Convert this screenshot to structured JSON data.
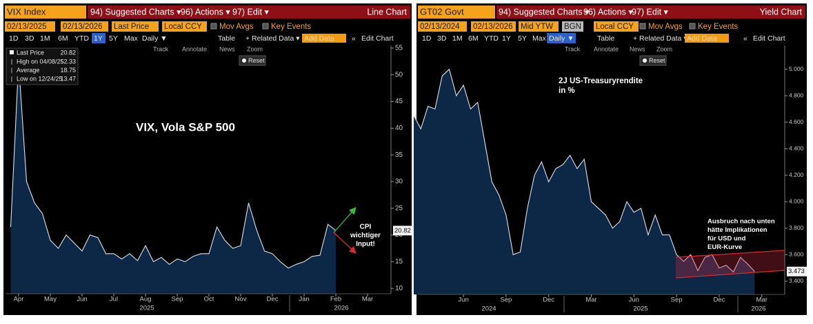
{
  "panels": [
    {
      "security": "VIX Index",
      "menus": [
        "94) Suggested Charts ▾",
        "96) Actions ▾",
        "97) Edit ▾"
      ],
      "view": "Line Chart",
      "fields": [
        "02/13/2025",
        "02/13/2026",
        "Last Price",
        "Local CCY"
      ],
      "toggles": [
        "Mov Avgs",
        "Key Events"
      ],
      "periods": [
        "1D",
        "3D",
        "1M",
        "6M",
        "YTD",
        "1Y",
        "5Y",
        "Max"
      ],
      "tools": [
        "Daily ▼",
        "Table",
        "+ Related Data ▾",
        "Add Data",
        "«",
        "Edit Chart"
      ],
      "chart_tools": [
        "Track",
        "Annotate",
        "News",
        "Zoom"
      ],
      "reset": "Reset"
    },
    {
      "security": "GT02 Govt",
      "menus": [
        "94) Suggested Charts ▾",
        "96) Actions ▾",
        "97) Edit ▾"
      ],
      "view": "Yield Chart",
      "fields": [
        "02/13/2024",
        "02/13/2026",
        "Mid YTW",
        "BGN",
        "Local CCY"
      ],
      "toggles": [
        "Mov Avgs",
        "Key Events"
      ],
      "periods": [
        "1D",
        "3D",
        "1M",
        "6M",
        "YTD",
        "1Y",
        "5Y",
        "Max"
      ],
      "tools": [
        "Daily ▼",
        "Table",
        "+ Related Data ▾",
        "Add Data",
        "«",
        "Edit Chart"
      ],
      "chart_tools": [
        "Track",
        "Annotate",
        "News",
        "Zoom"
      ],
      "reset": "Reset"
    }
  ],
  "chart_data": [
    {
      "type": "line",
      "title": "VIX, Vola S&P 500",
      "annotation_lines": [
        "CPI",
        "wichtiger",
        "Input!"
      ],
      "categories": [
        null,
        "Apr",
        null,
        null,
        null,
        "May",
        null,
        null,
        null,
        "Jun",
        null,
        null,
        null,
        "Jul",
        null,
        null,
        null,
        "Aug",
        null,
        null,
        null,
        "Sep",
        null,
        null,
        null,
        "Oct",
        null,
        null,
        null,
        "Nov",
        null,
        null,
        null,
        "Dec",
        null,
        null,
        null,
        "Jan",
        null,
        null,
        null,
        "Feb",
        null,
        null,
        null,
        "Mar",
        null,
        null,
        null
      ],
      "year_labels": [
        "2025",
        "2026"
      ],
      "series": [
        {
          "name": "Last Price",
          "color": "#dfe3ea",
          "values": [
            21.5,
            52.3,
            30,
            26,
            24,
            19,
            17.5,
            20,
            18.5,
            17,
            20,
            19.5,
            16.5,
            16.5,
            15.5,
            16.5,
            15.2,
            18,
            15,
            15.8,
            14.5,
            15.5,
            15,
            16,
            16.5,
            16.5,
            21.5,
            19,
            17.5,
            18,
            26,
            21,
            17,
            16.5,
            15,
            13.8,
            14.5,
            15,
            16,
            16.2,
            22,
            20.82,
            null,
            null,
            null,
            null,
            null,
            null,
            null
          ]
        }
      ],
      "stats": [
        {
          "label": "High on 04/08/25",
          "value": 52.33
        },
        {
          "label": "Average",
          "value": 18.75
        },
        {
          "label": "Low on 12/24/25",
          "value": 13.47
        }
      ],
      "fill": "#0d2747",
      "ylim": [
        9,
        55.5
      ],
      "yticks": [
        10,
        15,
        20,
        25,
        30,
        35,
        40,
        45,
        50,
        55
      ],
      "grid": false
    },
    {
      "type": "line",
      "title_lines": [
        "2J US-Treasuryrendite",
        "in %"
      ],
      "annotation_lines": [
        "Ausbruch nach unten",
        "hätte Implikationen",
        "für USD und",
        "EUR-Kurve"
      ],
      "categories": [
        null,
        null,
        null,
        null,
        null,
        null,
        null,
        "Jun",
        null,
        null,
        null,
        null,
        null,
        "Sep",
        null,
        null,
        null,
        null,
        null,
        "Dec",
        null,
        null,
        null,
        null,
        null,
        "Mar",
        null,
        null,
        null,
        null,
        null,
        "Jun",
        null,
        null,
        null,
        null,
        null,
        "Sep",
        null,
        null,
        null,
        null,
        null,
        "Dec",
        null,
        null,
        null,
        null,
        null,
        "Mar",
        null,
        null
      ],
      "year_labels": [
        "2024",
        "2025",
        "2026"
      ],
      "color": "#dfe3ea",
      "values": [
        4.65,
        4.55,
        4.72,
        4.7,
        4.95,
        5.0,
        4.8,
        4.88,
        4.7,
        4.75,
        4.45,
        4.15,
        4.05,
        3.9,
        3.6,
        3.62,
        3.95,
        4.2,
        4.3,
        4.15,
        4.25,
        4.28,
        4.35,
        4.25,
        4.32,
        4.0,
        3.95,
        3.9,
        3.8,
        3.85,
        4.0,
        3.92,
        3.95,
        3.75,
        3.9,
        3.75,
        3.75,
        3.6,
        3.55,
        3.6,
        3.48,
        3.58,
        3.6,
        3.5,
        3.52,
        3.47,
        3.58,
        3.53,
        3.473,
        null,
        null,
        null
      ],
      "fill": "#0d2747",
      "ylim": [
        3.3,
        5.18
      ],
      "yticks": [
        {
          "value": 3.4,
          "label": "3.400"
        },
        {
          "value": 3.6,
          "label": "3.600"
        },
        {
          "value": 3.8,
          "label": "3.800"
        },
        {
          "value": 4.0,
          "label": "4.000"
        },
        {
          "value": 4.2,
          "label": "4.200"
        },
        {
          "value": 4.4,
          "label": "4.400"
        },
        {
          "value": 4.6,
          "label": "4.600"
        },
        {
          "value": 4.8,
          "label": "4.800"
        },
        {
          "value": 5.0,
          "label": "5.000"
        }
      ],
      "grid": false
    }
  ]
}
